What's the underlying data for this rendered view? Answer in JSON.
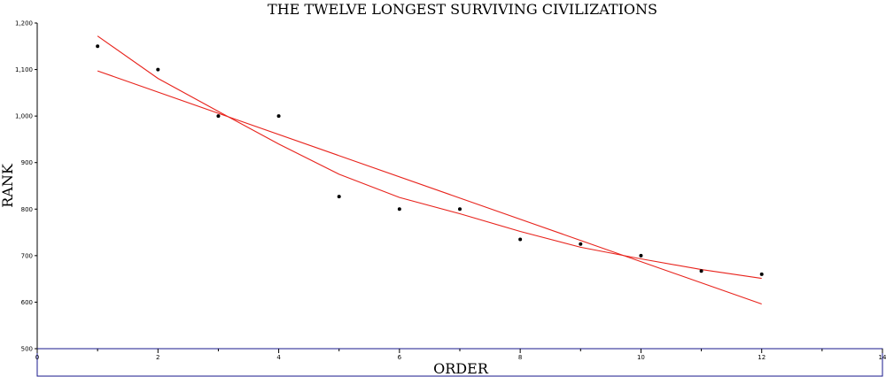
{
  "chart_data": {
    "type": "scatter",
    "title": "THE TWELVE LONGEST SURVIVING CIVILIZATIONS",
    "xlabel": "ORDER",
    "ylabel": "RANK",
    "xlim": [
      0,
      14
    ],
    "ylim": [
      500,
      1200
    ],
    "x_ticks": [
      0,
      2,
      4,
      6,
      8,
      10,
      12,
      14
    ],
    "y_ticks": [
      500,
      600,
      700,
      800,
      900,
      1000,
      1100,
      1200
    ],
    "y_tick_labels": [
      "500",
      "600",
      "700",
      "800",
      "900",
      "1,000",
      "1,100",
      "1,200"
    ],
    "grid": false,
    "legend": "none",
    "point_color": "#000000",
    "line_color": "#e8231c",
    "series": [
      {
        "type": "scatter",
        "x": [
          1,
          2,
          3,
          4,
          5,
          6,
          7,
          8,
          9,
          10,
          11,
          12
        ],
        "y": [
          1150,
          1100,
          1000,
          1000,
          827,
          800,
          800,
          735,
          725,
          700,
          667,
          660
        ]
      },
      {
        "type": "line",
        "fit": "linear",
        "x": [
          1,
          12
        ],
        "y": [
          1097,
          596
        ]
      },
      {
        "type": "line",
        "fit": "curve",
        "x": [
          1,
          2,
          3,
          4,
          5,
          6,
          7,
          8,
          9,
          10,
          11,
          12
        ],
        "y": [
          1172,
          1081,
          1010,
          940,
          875,
          825,
          790,
          752,
          718,
          693,
          670,
          651
        ]
      }
    ]
  }
}
